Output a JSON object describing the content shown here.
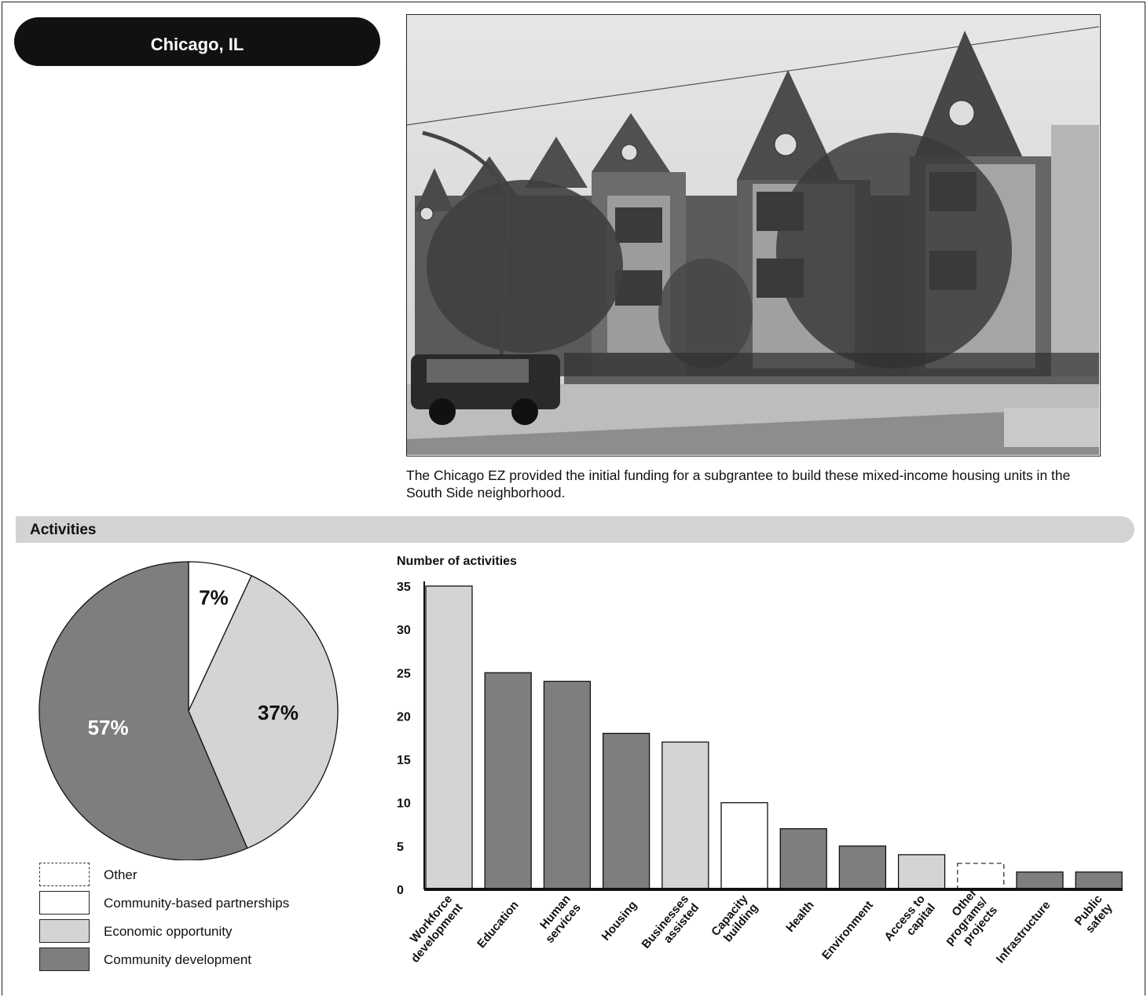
{
  "header": {
    "city": "Chicago, IL"
  },
  "photo": {
    "caption": "The Chicago EZ provided the initial funding for a subgrantee to build these mixed-income housing units in the South Side neighborhood."
  },
  "section": {
    "title": "Activities"
  },
  "colors": {
    "community_development": "#7e7e80",
    "economic_opportunity": "#d4d4d4",
    "community_based_partnerships": "#ffffff",
    "other": "#ffffff",
    "outline": "#111111"
  },
  "chart_data": [
    {
      "type": "pie",
      "slices": [
        {
          "category": "Community-based partnerships",
          "value": 7,
          "label": "7%"
        },
        {
          "category": "Economic opportunity",
          "value": 37,
          "label": "37%"
        },
        {
          "category": "Community development",
          "value": 57,
          "label": "57%"
        }
      ],
      "legend": [
        {
          "label": "Other",
          "style": "dashed"
        },
        {
          "label": "Community-based partnerships",
          "style": "white"
        },
        {
          "label": "Economic opportunity",
          "style": "light-gray"
        },
        {
          "label": "Community development",
          "style": "dark-gray"
        }
      ]
    },
    {
      "type": "bar",
      "ylabel": "Number of activities",
      "ylim": [
        0,
        35
      ],
      "yticks": [
        0,
        5,
        10,
        15,
        20,
        25,
        30,
        35
      ],
      "bars": [
        {
          "category": "Workforce development",
          "lines": [
            "Workforce",
            "development"
          ],
          "value": 35,
          "group": "Economic opportunity"
        },
        {
          "category": "Education",
          "lines": [
            "Education"
          ],
          "value": 25,
          "group": "Community development"
        },
        {
          "category": "Human services",
          "lines": [
            "Human",
            "services"
          ],
          "value": 24,
          "group": "Community development"
        },
        {
          "category": "Housing",
          "lines": [
            "Housing"
          ],
          "value": 18,
          "group": "Community development"
        },
        {
          "category": "Businesses assisted",
          "lines": [
            "Businesses",
            "assisted"
          ],
          "value": 17,
          "group": "Economic opportunity"
        },
        {
          "category": "Capacity building",
          "lines": [
            "Capacity",
            "building"
          ],
          "value": 10,
          "group": "Community-based partnerships"
        },
        {
          "category": "Health",
          "lines": [
            "Health"
          ],
          "value": 7,
          "group": "Community development"
        },
        {
          "category": "Environment",
          "lines": [
            "Environment"
          ],
          "value": 5,
          "group": "Community development"
        },
        {
          "category": "Access to capital",
          "lines": [
            "Access to",
            "capital"
          ],
          "value": 4,
          "group": "Economic opportunity"
        },
        {
          "category": "Other programs/projects",
          "lines": [
            "Other",
            "programs/",
            "projects"
          ],
          "value": 3,
          "group": "Other"
        },
        {
          "category": "Infrastructure",
          "lines": [
            "Infrastructure"
          ],
          "value": 2,
          "group": "Community development"
        },
        {
          "category": "Public safety",
          "lines": [
            "Public",
            "safety"
          ],
          "value": 2,
          "group": "Community development"
        }
      ]
    }
  ]
}
